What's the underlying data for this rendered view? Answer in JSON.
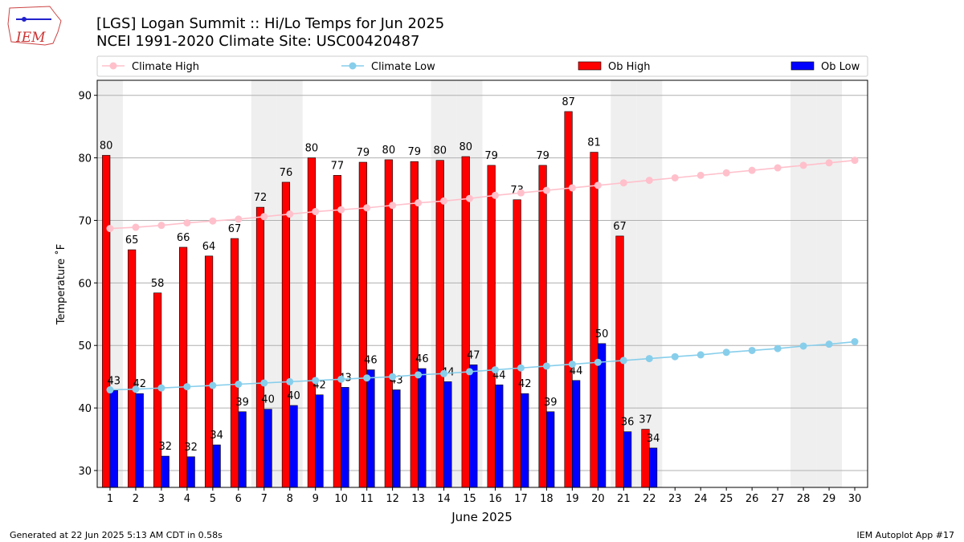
{
  "chart_data": {
    "type": "bar_line",
    "title": "[LGS] Logan Summit  :: Hi/Lo Temps for Jun 2025",
    "subtitle": "NCEI 1991-2020 Climate Site: USC00420487",
    "logo_text": "IEM",
    "xlabel": "June 2025",
    "ylabel": "Temperature ˚F",
    "footer_left": "Generated at 22 Jun 2025 5:13 AM CDT in 0.58s",
    "footer_right": "IEM Autoplot App #17",
    "x": [
      1,
      2,
      3,
      4,
      5,
      6,
      7,
      8,
      9,
      10,
      11,
      12,
      13,
      14,
      15,
      16,
      17,
      18,
      19,
      20,
      21,
      22,
      23,
      24,
      25,
      26,
      27,
      28,
      29,
      30
    ],
    "xlim": [
      0.5,
      30.5
    ],
    "xticks": [
      1,
      2,
      3,
      4,
      5,
      6,
      7,
      8,
      9,
      10,
      11,
      12,
      13,
      14,
      15,
      16,
      17,
      18,
      19,
      20,
      21,
      22,
      23,
      24,
      25,
      26,
      27,
      28,
      29,
      30
    ],
    "ylim": [
      27.3,
      92.4
    ],
    "yticks": [
      30,
      40,
      50,
      60,
      70,
      80,
      90
    ],
    "grid": true,
    "shaded_days": [
      1,
      7,
      8,
      14,
      15,
      21,
      22,
      28,
      29
    ],
    "series": [
      {
        "name": "Climate High",
        "kind": "line",
        "color": "#ffc0cb",
        "values": [
          68.7,
          68.9,
          69.2,
          69.6,
          69.9,
          70.2,
          70.6,
          71.0,
          71.4,
          71.7,
          72.0,
          72.4,
          72.8,
          73.1,
          73.5,
          74.0,
          74.4,
          74.8,
          75.2,
          75.6,
          76.0,
          76.4,
          76.8,
          77.2,
          77.6,
          78.0,
          78.4,
          78.8,
          79.2,
          79.6
        ]
      },
      {
        "name": "Climate Low",
        "kind": "line",
        "color": "#87ceeb",
        "values": [
          42.9,
          43.0,
          43.2,
          43.4,
          43.6,
          43.8,
          44.0,
          44.2,
          44.4,
          44.6,
          44.8,
          45.0,
          45.3,
          45.5,
          45.8,
          46.1,
          46.4,
          46.7,
          47.0,
          47.3,
          47.6,
          47.9,
          48.2,
          48.5,
          48.9,
          49.2,
          49.5,
          49.9,
          50.2,
          50.6
        ]
      },
      {
        "name": "Ob High",
        "kind": "bar",
        "color": "#ff0000",
        "values": [
          80.4,
          65.3,
          58.4,
          65.7,
          64.3,
          67.1,
          72.1,
          76.1,
          80.0,
          77.2,
          79.3,
          79.7,
          79.4,
          79.6,
          80.2,
          78.8,
          73.3,
          78.8,
          87.4,
          80.9,
          67.5,
          36.6,
          null,
          null,
          null,
          null,
          null,
          null,
          null,
          null
        ],
        "value_labels": [
          "80",
          "65",
          "58",
          "66",
          "64",
          "67",
          "72",
          "76",
          "80",
          "77",
          "79",
          "80",
          "79",
          "80",
          "80",
          "79",
          "73",
          "79",
          "87",
          "81",
          "67",
          "37",
          null,
          null,
          null,
          null,
          null,
          null,
          null,
          null
        ]
      },
      {
        "name": "Ob Low",
        "kind": "bar",
        "color": "#0000ff",
        "values": [
          42.8,
          42.3,
          32.3,
          32.2,
          34.1,
          39.4,
          39.8,
          40.4,
          42.1,
          43.3,
          46.1,
          42.9,
          46.3,
          44.2,
          46.9,
          43.7,
          42.3,
          39.4,
          44.4,
          50.3,
          36.2,
          33.6,
          null,
          null,
          null,
          null,
          null,
          null,
          null,
          null
        ],
        "value_labels": [
          "43",
          "42",
          "32",
          "32",
          "34",
          "39",
          "40",
          "40",
          "42",
          "43",
          "46",
          "43",
          "46",
          "44",
          "47",
          "44",
          "42",
          "39",
          "44",
          "50",
          "36",
          "34",
          null,
          null,
          null,
          null,
          null,
          null,
          null,
          null
        ]
      }
    ]
  }
}
